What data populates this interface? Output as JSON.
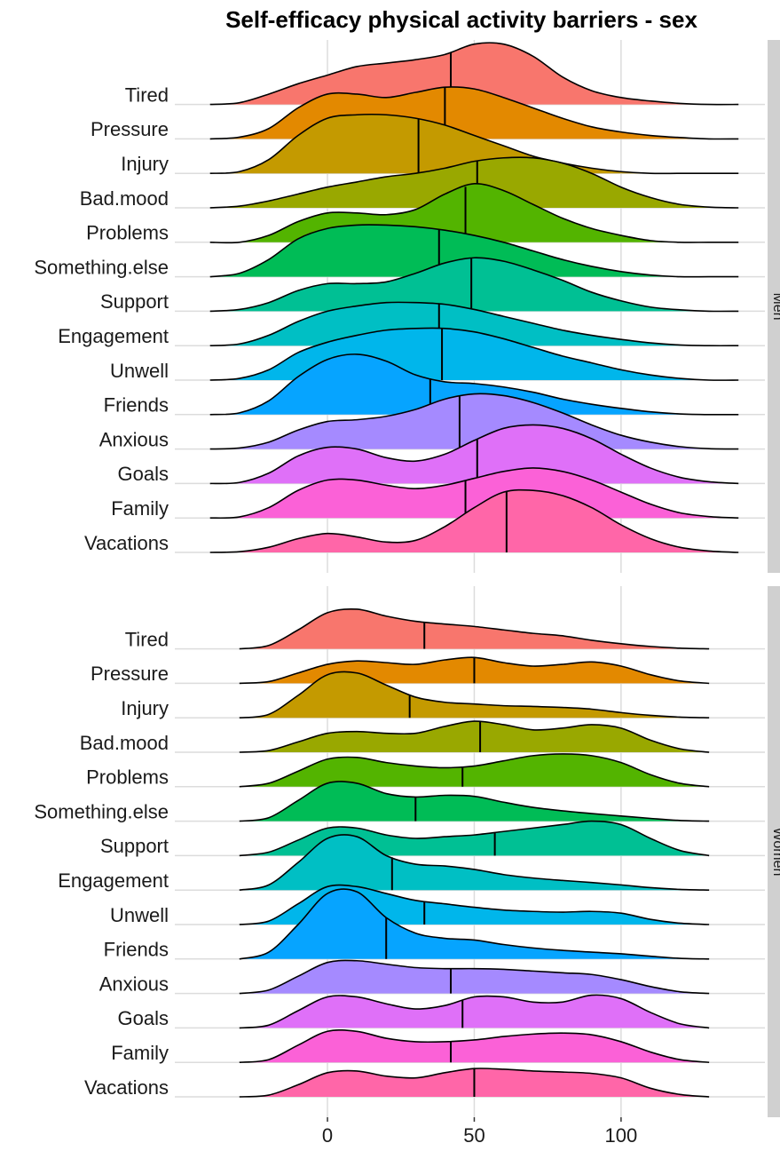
{
  "chart_data": [
    {
      "type": "ridgeline",
      "title": "Self-efficacy physical activity barriers - sex",
      "facet": "Men",
      "x": [
        -40,
        -30,
        -20,
        -10,
        0,
        10,
        20,
        30,
        40,
        50,
        60,
        70,
        80,
        90,
        100,
        110,
        120,
        130,
        140
      ],
      "xlim": [
        -52,
        149
      ],
      "xticks": [
        0,
        50,
        100
      ],
      "grid": true,
      "series": [
        {
          "name": "Tired",
          "color": "#F8766D",
          "median": 42,
          "values": [
            0,
            0.05,
            0.3,
            0.6,
            0.85,
            1.1,
            1.2,
            1.3,
            1.45,
            1.75,
            1.75,
            1.4,
            0.8,
            0.4,
            0.2,
            0.1,
            0.03,
            0,
            0
          ]
        },
        {
          "name": "Pressure",
          "color": "#E38900",
          "median": 40,
          "values": [
            0,
            0.05,
            0.3,
            0.9,
            1.3,
            1.3,
            1.2,
            1.35,
            1.5,
            1.45,
            1.2,
            0.9,
            0.6,
            0.35,
            0.2,
            0.1,
            0.04,
            0,
            0
          ]
        },
        {
          "name": "Injury",
          "color": "#C49A00",
          "median": 31,
          "values": [
            0,
            0.05,
            0.4,
            1.1,
            1.6,
            1.7,
            1.7,
            1.6,
            1.4,
            1.1,
            0.8,
            0.5,
            0.3,
            0.15,
            0.05,
            0,
            0,
            0,
            0
          ]
        },
        {
          "name": "Bad.mood",
          "color": "#99A800",
          "median": 51,
          "values": [
            0,
            0.05,
            0.2,
            0.4,
            0.6,
            0.75,
            0.9,
            1.0,
            1.15,
            1.35,
            1.45,
            1.45,
            1.3,
            1.0,
            0.6,
            0.3,
            0.1,
            0.02,
            0
          ]
        },
        {
          "name": "Problems",
          "color": "#53B400",
          "median": 47,
          "values": [
            0,
            0,
            0.2,
            0.6,
            0.85,
            0.85,
            0.8,
            0.95,
            1.4,
            1.7,
            1.5,
            1.1,
            0.7,
            0.4,
            0.2,
            0.05,
            0,
            0,
            0
          ]
        },
        {
          "name": "Something.else",
          "color": "#00BC56",
          "median": 38,
          "values": [
            0,
            0.1,
            0.5,
            1.1,
            1.4,
            1.5,
            1.5,
            1.45,
            1.35,
            1.2,
            1.0,
            0.75,
            0.5,
            0.3,
            0.15,
            0.05,
            0,
            0,
            0
          ]
        },
        {
          "name": "Support",
          "color": "#00C094",
          "median": 49,
          "values": [
            0,
            0.05,
            0.25,
            0.6,
            0.8,
            0.8,
            0.85,
            1.1,
            1.4,
            1.55,
            1.45,
            1.2,
            0.9,
            0.55,
            0.3,
            0.12,
            0.04,
            0,
            0
          ]
        },
        {
          "name": "Engagement",
          "color": "#00BFC4",
          "median": 38,
          "values": [
            0,
            0.05,
            0.3,
            0.7,
            1.0,
            1.15,
            1.25,
            1.25,
            1.2,
            1.05,
            0.85,
            0.65,
            0.45,
            0.3,
            0.18,
            0.08,
            0.02,
            0,
            0
          ]
        },
        {
          "name": "Unwell",
          "color": "#00B6EB",
          "median": 39,
          "values": [
            0,
            0.05,
            0.3,
            0.8,
            1.1,
            1.3,
            1.45,
            1.5,
            1.5,
            1.4,
            1.2,
            0.95,
            0.7,
            0.5,
            0.3,
            0.15,
            0.05,
            0,
            0
          ]
        },
        {
          "name": "Friends",
          "color": "#06A4FF",
          "median": 35,
          "values": [
            0,
            0.05,
            0.4,
            1.1,
            1.6,
            1.75,
            1.55,
            1.15,
            0.95,
            0.9,
            0.8,
            0.65,
            0.45,
            0.3,
            0.18,
            0.08,
            0.02,
            0,
            0
          ]
        },
        {
          "name": "Anxious",
          "color": "#A58AFF",
          "median": 45,
          "values": [
            0,
            0.03,
            0.2,
            0.55,
            0.8,
            0.85,
            0.95,
            1.15,
            1.45,
            1.6,
            1.55,
            1.35,
            1.05,
            0.7,
            0.4,
            0.2,
            0.07,
            0.01,
            0
          ]
        },
        {
          "name": "Goals",
          "color": "#DF70F8",
          "median": 51,
          "values": [
            0,
            0.03,
            0.3,
            0.8,
            1.05,
            1.0,
            0.75,
            0.65,
            0.85,
            1.25,
            1.6,
            1.7,
            1.6,
            1.3,
            0.85,
            0.45,
            0.18,
            0.05,
            0
          ]
        },
        {
          "name": "Family",
          "color": "#FB61D7",
          "median": 47,
          "values": [
            0,
            0.03,
            0.3,
            0.8,
            1.1,
            1.1,
            0.95,
            0.85,
            0.95,
            1.15,
            1.35,
            1.45,
            1.35,
            1.1,
            0.75,
            0.4,
            0.15,
            0.04,
            0
          ]
        },
        {
          "name": "Vacations",
          "color": "#FF66A8",
          "median": 61,
          "values": [
            0,
            0.02,
            0.15,
            0.4,
            0.55,
            0.45,
            0.3,
            0.35,
            0.75,
            1.3,
            1.75,
            1.8,
            1.65,
            1.3,
            0.8,
            0.4,
            0.15,
            0.04,
            0
          ]
        }
      ]
    },
    {
      "type": "ridgeline",
      "facet": "Women",
      "x": [
        -30,
        -20,
        -10,
        0,
        10,
        20,
        30,
        40,
        50,
        60,
        70,
        80,
        90,
        100,
        110,
        120,
        130
      ],
      "xlim": [
        -52,
        149
      ],
      "xticks": [
        0,
        50,
        100
      ],
      "grid": true,
      "series": [
        {
          "name": "Tired",
          "color": "#F8766D",
          "median": 33,
          "values": [
            0,
            0.1,
            0.55,
            1.05,
            1.15,
            0.95,
            0.8,
            0.72,
            0.65,
            0.55,
            0.45,
            0.38,
            0.25,
            0.15,
            0.07,
            0.02,
            0
          ]
        },
        {
          "name": "Pressure",
          "color": "#E38900",
          "median": 50,
          "values": [
            0,
            0.05,
            0.3,
            0.55,
            0.65,
            0.6,
            0.55,
            0.68,
            0.75,
            0.6,
            0.5,
            0.55,
            0.62,
            0.5,
            0.25,
            0.07,
            0
          ]
        },
        {
          "name": "Injury",
          "color": "#C49A00",
          "median": 28,
          "values": [
            0,
            0.1,
            0.65,
            1.25,
            1.3,
            0.95,
            0.6,
            0.45,
            0.4,
            0.35,
            0.33,
            0.3,
            0.25,
            0.15,
            0.07,
            0.02,
            0
          ]
        },
        {
          "name": "Bad.mood",
          "color": "#99A800",
          "median": 52,
          "values": [
            0,
            0.05,
            0.3,
            0.55,
            0.6,
            0.55,
            0.55,
            0.75,
            0.9,
            0.8,
            0.65,
            0.7,
            0.8,
            0.7,
            0.35,
            0.1,
            0
          ]
        },
        {
          "name": "Problems",
          "color": "#53B400",
          "median": 46,
          "values": [
            0,
            0.1,
            0.45,
            0.8,
            0.85,
            0.7,
            0.6,
            0.55,
            0.6,
            0.75,
            0.9,
            0.95,
            0.9,
            0.7,
            0.35,
            0.1,
            0
          ]
        },
        {
          "name": "Something.else",
          "color": "#00BC56",
          "median": 30,
          "values": [
            0,
            0.1,
            0.6,
            1.1,
            1.1,
            0.8,
            0.7,
            0.75,
            0.72,
            0.55,
            0.4,
            0.3,
            0.22,
            0.15,
            0.08,
            0.02,
            0
          ]
        },
        {
          "name": "Support",
          "color": "#00C094",
          "median": 57,
          "values": [
            0,
            0.1,
            0.45,
            0.8,
            0.8,
            0.6,
            0.5,
            0.55,
            0.6,
            0.7,
            0.8,
            0.9,
            1.0,
            0.9,
            0.5,
            0.15,
            0
          ]
        },
        {
          "name": "Engagement",
          "color": "#00BFC4",
          "median": 22,
          "values": [
            0,
            0.15,
            0.8,
            1.5,
            1.55,
            1.0,
            0.75,
            0.7,
            0.6,
            0.45,
            0.35,
            0.28,
            0.22,
            0.15,
            0.07,
            0.02,
            0
          ]
        },
        {
          "name": "Unwell",
          "color": "#00B6EB",
          "median": 33,
          "values": [
            0,
            0.1,
            0.6,
            1.1,
            1.1,
            0.9,
            0.7,
            0.6,
            0.5,
            0.42,
            0.38,
            0.36,
            0.38,
            0.33,
            0.15,
            0.04,
            0
          ]
        },
        {
          "name": "Friends",
          "color": "#06A4FF",
          "median": 20,
          "values": [
            0,
            0.2,
            1.0,
            1.9,
            1.95,
            1.2,
            0.75,
            0.6,
            0.55,
            0.42,
            0.32,
            0.25,
            0.2,
            0.15,
            0.08,
            0.02,
            0
          ]
        },
        {
          "name": "Anxious",
          "color": "#A58AFF",
          "median": 42,
          "values": [
            0,
            0.1,
            0.5,
            0.9,
            0.95,
            0.85,
            0.75,
            0.72,
            0.72,
            0.7,
            0.65,
            0.6,
            0.55,
            0.4,
            0.2,
            0.05,
            0
          ]
        },
        {
          "name": "Goals",
          "color": "#DF70F8",
          "median": 46,
          "values": [
            0,
            0.08,
            0.5,
            0.9,
            0.9,
            0.7,
            0.55,
            0.65,
            0.9,
            0.9,
            0.75,
            0.75,
            0.95,
            0.85,
            0.45,
            0.12,
            0
          ]
        },
        {
          "name": "Family",
          "color": "#FB61D7",
          "median": 42,
          "values": [
            0,
            0.08,
            0.5,
            0.9,
            0.9,
            0.7,
            0.6,
            0.6,
            0.65,
            0.75,
            0.82,
            0.85,
            0.8,
            0.6,
            0.3,
            0.08,
            0
          ]
        },
        {
          "name": "Vacations",
          "color": "#FF66A8",
          "median": 50,
          "values": [
            0,
            0.05,
            0.35,
            0.7,
            0.75,
            0.6,
            0.55,
            0.7,
            0.82,
            0.8,
            0.75,
            0.72,
            0.68,
            0.55,
            0.25,
            0.07,
            0
          ]
        }
      ]
    }
  ]
}
